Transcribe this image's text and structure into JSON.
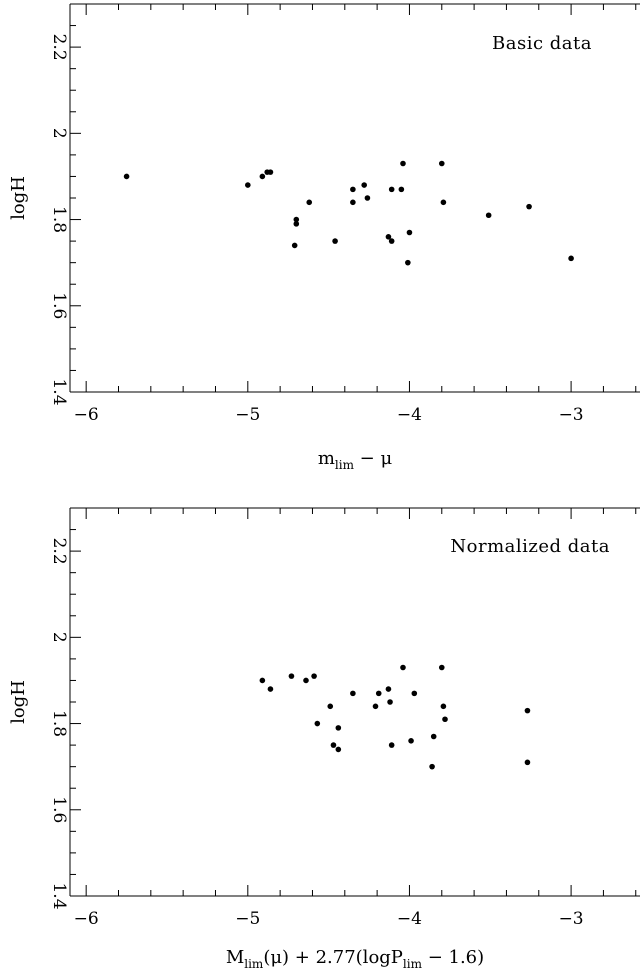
{
  "chart_data": [
    {
      "type": "scatter",
      "annotation": "Basic data",
      "xlabel": {
        "base": "m",
        "sub": "lim",
        "rest": " − μ"
      },
      "ylabel": "logH",
      "xlim": [
        -6.1,
        -2.45
      ],
      "ylim": [
        1.4,
        2.3
      ],
      "xticks": [
        -6,
        -5,
        -4,
        -3
      ],
      "xtick_labels": [
        "−6",
        "−5",
        "−4",
        "−3"
      ],
      "yticks": [
        1.4,
        1.6,
        1.8,
        2.0,
        2.2
      ],
      "ytick_labels": [
        "1.4",
        "1.6",
        "1.8",
        "2",
        "2.2"
      ],
      "grid": false,
      "points": [
        {
          "x": -5.75,
          "y": 1.9
        },
        {
          "x": -5.0,
          "y": 1.88
        },
        {
          "x": -4.91,
          "y": 1.9
        },
        {
          "x": -4.88,
          "y": 1.91
        },
        {
          "x": -4.86,
          "y": 1.91
        },
        {
          "x": -4.7,
          "y": 1.8
        },
        {
          "x": -4.7,
          "y": 1.79
        },
        {
          "x": -4.71,
          "y": 1.74
        },
        {
          "x": -4.62,
          "y": 1.84
        },
        {
          "x": -4.46,
          "y": 1.75
        },
        {
          "x": -4.35,
          "y": 1.87
        },
        {
          "x": -4.35,
          "y": 1.84
        },
        {
          "x": -4.28,
          "y": 1.88
        },
        {
          "x": -4.26,
          "y": 1.85
        },
        {
          "x": -4.13,
          "y": 1.76
        },
        {
          "x": -4.11,
          "y": 1.75
        },
        {
          "x": -4.11,
          "y": 1.87
        },
        {
          "x": -4.05,
          "y": 1.87
        },
        {
          "x": -4.04,
          "y": 1.93
        },
        {
          "x": -4.0,
          "y": 1.77
        },
        {
          "x": -4.01,
          "y": 1.7
        },
        {
          "x": -3.8,
          "y": 1.93
        },
        {
          "x": -3.79,
          "y": 1.84
        },
        {
          "x": -3.51,
          "y": 1.81
        },
        {
          "x": -3.26,
          "y": 1.83
        },
        {
          "x": -3.0,
          "y": 1.71
        }
      ]
    },
    {
      "type": "scatter",
      "annotation": "Normalized data",
      "xlabel": {
        "base": "M",
        "sub": "lim",
        "rest": "(μ) + 2.77(logP",
        "sub2": "lim",
        "rest2": " − 1.6)"
      },
      "ylabel": "logH",
      "xlim": [
        -6.1,
        -2.45
      ],
      "ylim": [
        1.4,
        2.3
      ],
      "xticks": [
        -6,
        -5,
        -4,
        -3
      ],
      "xtick_labels": [
        "−6",
        "−5",
        "−4",
        "−3"
      ],
      "yticks": [
        1.4,
        1.6,
        1.8,
        2.0,
        2.2
      ],
      "ytick_labels": [
        "1.4",
        "1.6",
        "1.8",
        "2",
        "2.2"
      ],
      "grid": false,
      "points": [
        {
          "x": -4.91,
          "y": 1.9
        },
        {
          "x": -4.86,
          "y": 1.88
        },
        {
          "x": -4.73,
          "y": 1.91
        },
        {
          "x": -4.64,
          "y": 1.9
        },
        {
          "x": -4.59,
          "y": 1.91
        },
        {
          "x": -4.57,
          "y": 1.8
        },
        {
          "x": -4.49,
          "y": 1.84
        },
        {
          "x": -4.47,
          "y": 1.75
        },
        {
          "x": -4.44,
          "y": 1.74
        },
        {
          "x": -4.44,
          "y": 1.79
        },
        {
          "x": -4.35,
          "y": 1.87
        },
        {
          "x": -4.21,
          "y": 1.84
        },
        {
          "x": -4.19,
          "y": 1.87
        },
        {
          "x": -4.13,
          "y": 1.88
        },
        {
          "x": -4.12,
          "y": 1.85
        },
        {
          "x": -4.11,
          "y": 1.75
        },
        {
          "x": -4.04,
          "y": 1.93
        },
        {
          "x": -3.99,
          "y": 1.76
        },
        {
          "x": -3.97,
          "y": 1.87
        },
        {
          "x": -3.86,
          "y": 1.7
        },
        {
          "x": -3.85,
          "y": 1.77
        },
        {
          "x": -3.8,
          "y": 1.93
        },
        {
          "x": -3.79,
          "y": 1.84
        },
        {
          "x": -3.78,
          "y": 1.81
        },
        {
          "x": -3.27,
          "y": 1.83
        },
        {
          "x": -3.27,
          "y": 1.71
        }
      ]
    }
  ]
}
